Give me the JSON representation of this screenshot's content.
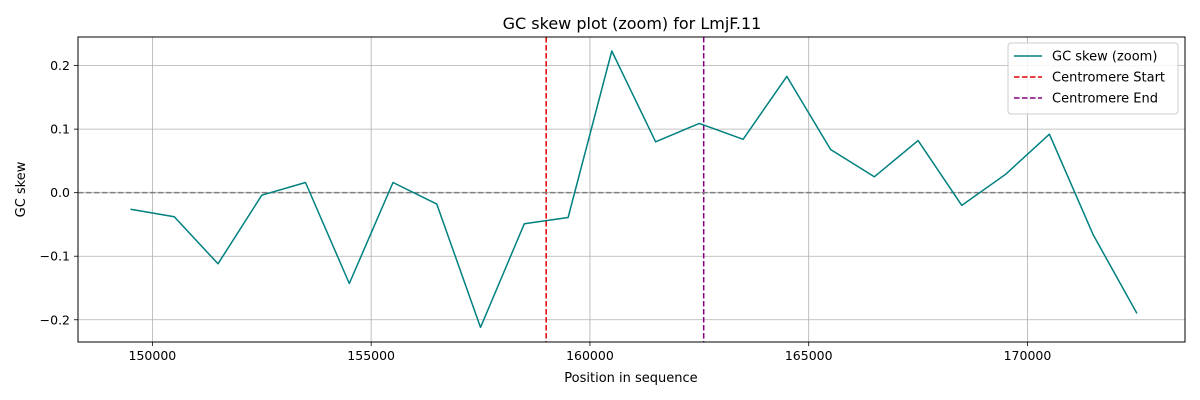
{
  "chart_data": {
    "type": "line",
    "title": "GC skew plot (zoom) for LmjF.11",
    "xlabel": "Position in sequence",
    "ylabel": "GC skew",
    "xlim": [
      148300,
      173600
    ],
    "ylim": [
      -0.235,
      0.245
    ],
    "xticks": [
      150000,
      155000,
      160000,
      165000,
      170000
    ],
    "yticks": [
      -0.2,
      -0.1,
      0.0,
      0.1,
      0.2
    ],
    "xtick_labels": [
      "150000",
      "155000",
      "160000",
      "165000",
      "170000"
    ],
    "ytick_labels": [
      "−0.2",
      "−0.1",
      "0.0",
      "0.1",
      "0.2"
    ],
    "grid": true,
    "legend_position": "top-right",
    "series": [
      {
        "name": "GC skew (zoom)",
        "color": "#008080",
        "x": [
          149500,
          150500,
          151500,
          152500,
          153500,
          154500,
          155500,
          156500,
          157500,
          158500,
          159500,
          160500,
          161500,
          162500,
          163500,
          164500,
          165500,
          166500,
          167500,
          168500,
          169500,
          170500,
          171500,
          172500
        ],
        "y": [
          -0.026,
          -0.038,
          -0.112,
          -0.004,
          0.016,
          -0.143,
          0.016,
          -0.018,
          -0.212,
          -0.049,
          -0.039,
          0.223,
          0.08,
          0.109,
          0.084,
          0.183,
          0.068,
          0.025,
          0.082,
          -0.02,
          0.029,
          0.092,
          -0.066,
          -0.19
        ]
      }
    ],
    "reference_lines": [
      {
        "name": "Centromere Start",
        "orientation": "vertical",
        "x": 159000,
        "color": "#e00000",
        "style": "dashed"
      },
      {
        "name": "Centromere End",
        "orientation": "vertical",
        "x": 162600,
        "color": "#800080",
        "style": "dashed"
      },
      {
        "name": "",
        "orientation": "horizontal",
        "y": 0.0,
        "color": "#808080",
        "style": "dashed"
      }
    ]
  }
}
